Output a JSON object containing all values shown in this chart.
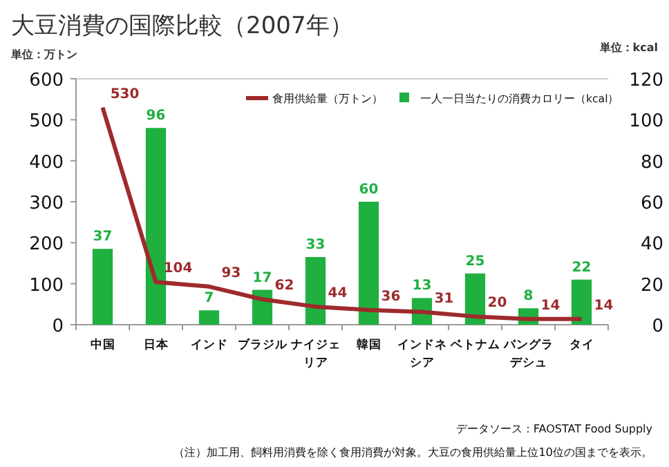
{
  "chart_data": {
    "type": "bar",
    "title": "大豆消費の国際比較（2007年）",
    "ylabel": "単位：万トン",
    "y2label": "単位：kcal",
    "categories": [
      "中国",
      "日本",
      "インド",
      "ブラジル",
      "ナイジェリア",
      "韓国",
      "インドネシア",
      "ベトナム",
      "バングラデシュ",
      "タイ"
    ],
    "series": [
      {
        "name": "食用供給量（万トン）",
        "type": "line",
        "color": "#9e2a2b",
        "values": [
          530,
          104,
          93,
          62,
          44,
          36,
          31,
          20,
          14,
          14
        ]
      },
      {
        "name": "一人一日当たりの消費カロリー（kcal）",
        "axis": "y2",
        "color": "#1fb040",
        "values": [
          37,
          96,
          7,
          17,
          33,
          60,
          13,
          25,
          8,
          22
        ]
      }
    ],
    "ylim": [
      0,
      600
    ],
    "yticks": [
      0,
      100,
      200,
      300,
      400,
      500,
      600
    ],
    "y2lim": [
      0,
      120
    ],
    "y2ticks": [
      0,
      20,
      40,
      60,
      80,
      100,
      120
    ],
    "data_labels": true,
    "legend": "top right",
    "annotations": [
      "データソース：FAOSTAT Food Supply",
      "（注）加工用、飼料用消費を除く食用消費が対象。大豆の食用供給量上位10位の国までを表示。"
    ]
  }
}
